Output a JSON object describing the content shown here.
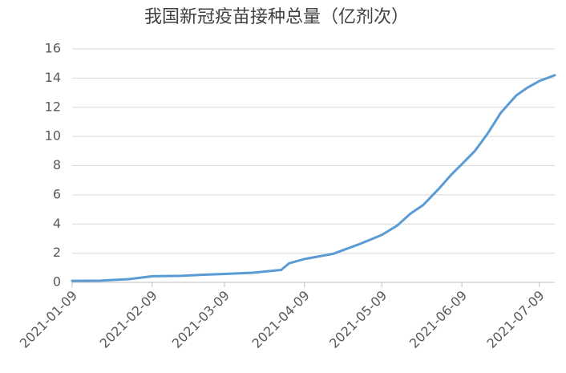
{
  "chart_data": {
    "type": "line",
    "title": "我国新冠疫苗接种总量（亿剂次）",
    "x": [
      "2021-01-09",
      "2021-01-20",
      "2021-01-31",
      "2021-02-09",
      "2021-02-20",
      "2021-03-01",
      "2021-03-09",
      "2021-03-20",
      "2021-03-31",
      "2021-04-03",
      "2021-04-09",
      "2021-04-20",
      "2021-04-30",
      "2021-05-09",
      "2021-05-15",
      "2021-05-20",
      "2021-05-25",
      "2021-05-31",
      "2021-06-05",
      "2021-06-09",
      "2021-06-14",
      "2021-06-19",
      "2021-06-24",
      "2021-06-30",
      "2021-07-04",
      "2021-07-09",
      "2021-07-15"
    ],
    "series": [
      {
        "name": "接种总量",
        "color": "#5b9bd5",
        "values": [
          0.1,
          0.12,
          0.22,
          0.42,
          0.45,
          0.52,
          0.58,
          0.66,
          0.85,
          1.3,
          1.6,
          1.95,
          2.6,
          3.25,
          3.9,
          4.7,
          5.3,
          6.4,
          7.4,
          8.1,
          9.0,
          10.2,
          11.6,
          12.8,
          13.3,
          13.8,
          14.2
        ]
      }
    ],
    "xlim": [
      "2021-01-09",
      "2021-07-15"
    ],
    "xticks": [
      "2021-01-09",
      "2021-02-09",
      "2021-03-09",
      "2021-04-09",
      "2021-05-09",
      "2021-06-09",
      "2021-07-09"
    ],
    "ylim": [
      0,
      16
    ],
    "yticks": [
      0,
      2,
      4,
      6,
      8,
      10,
      12,
      14,
      16
    ],
    "grid": true
  }
}
